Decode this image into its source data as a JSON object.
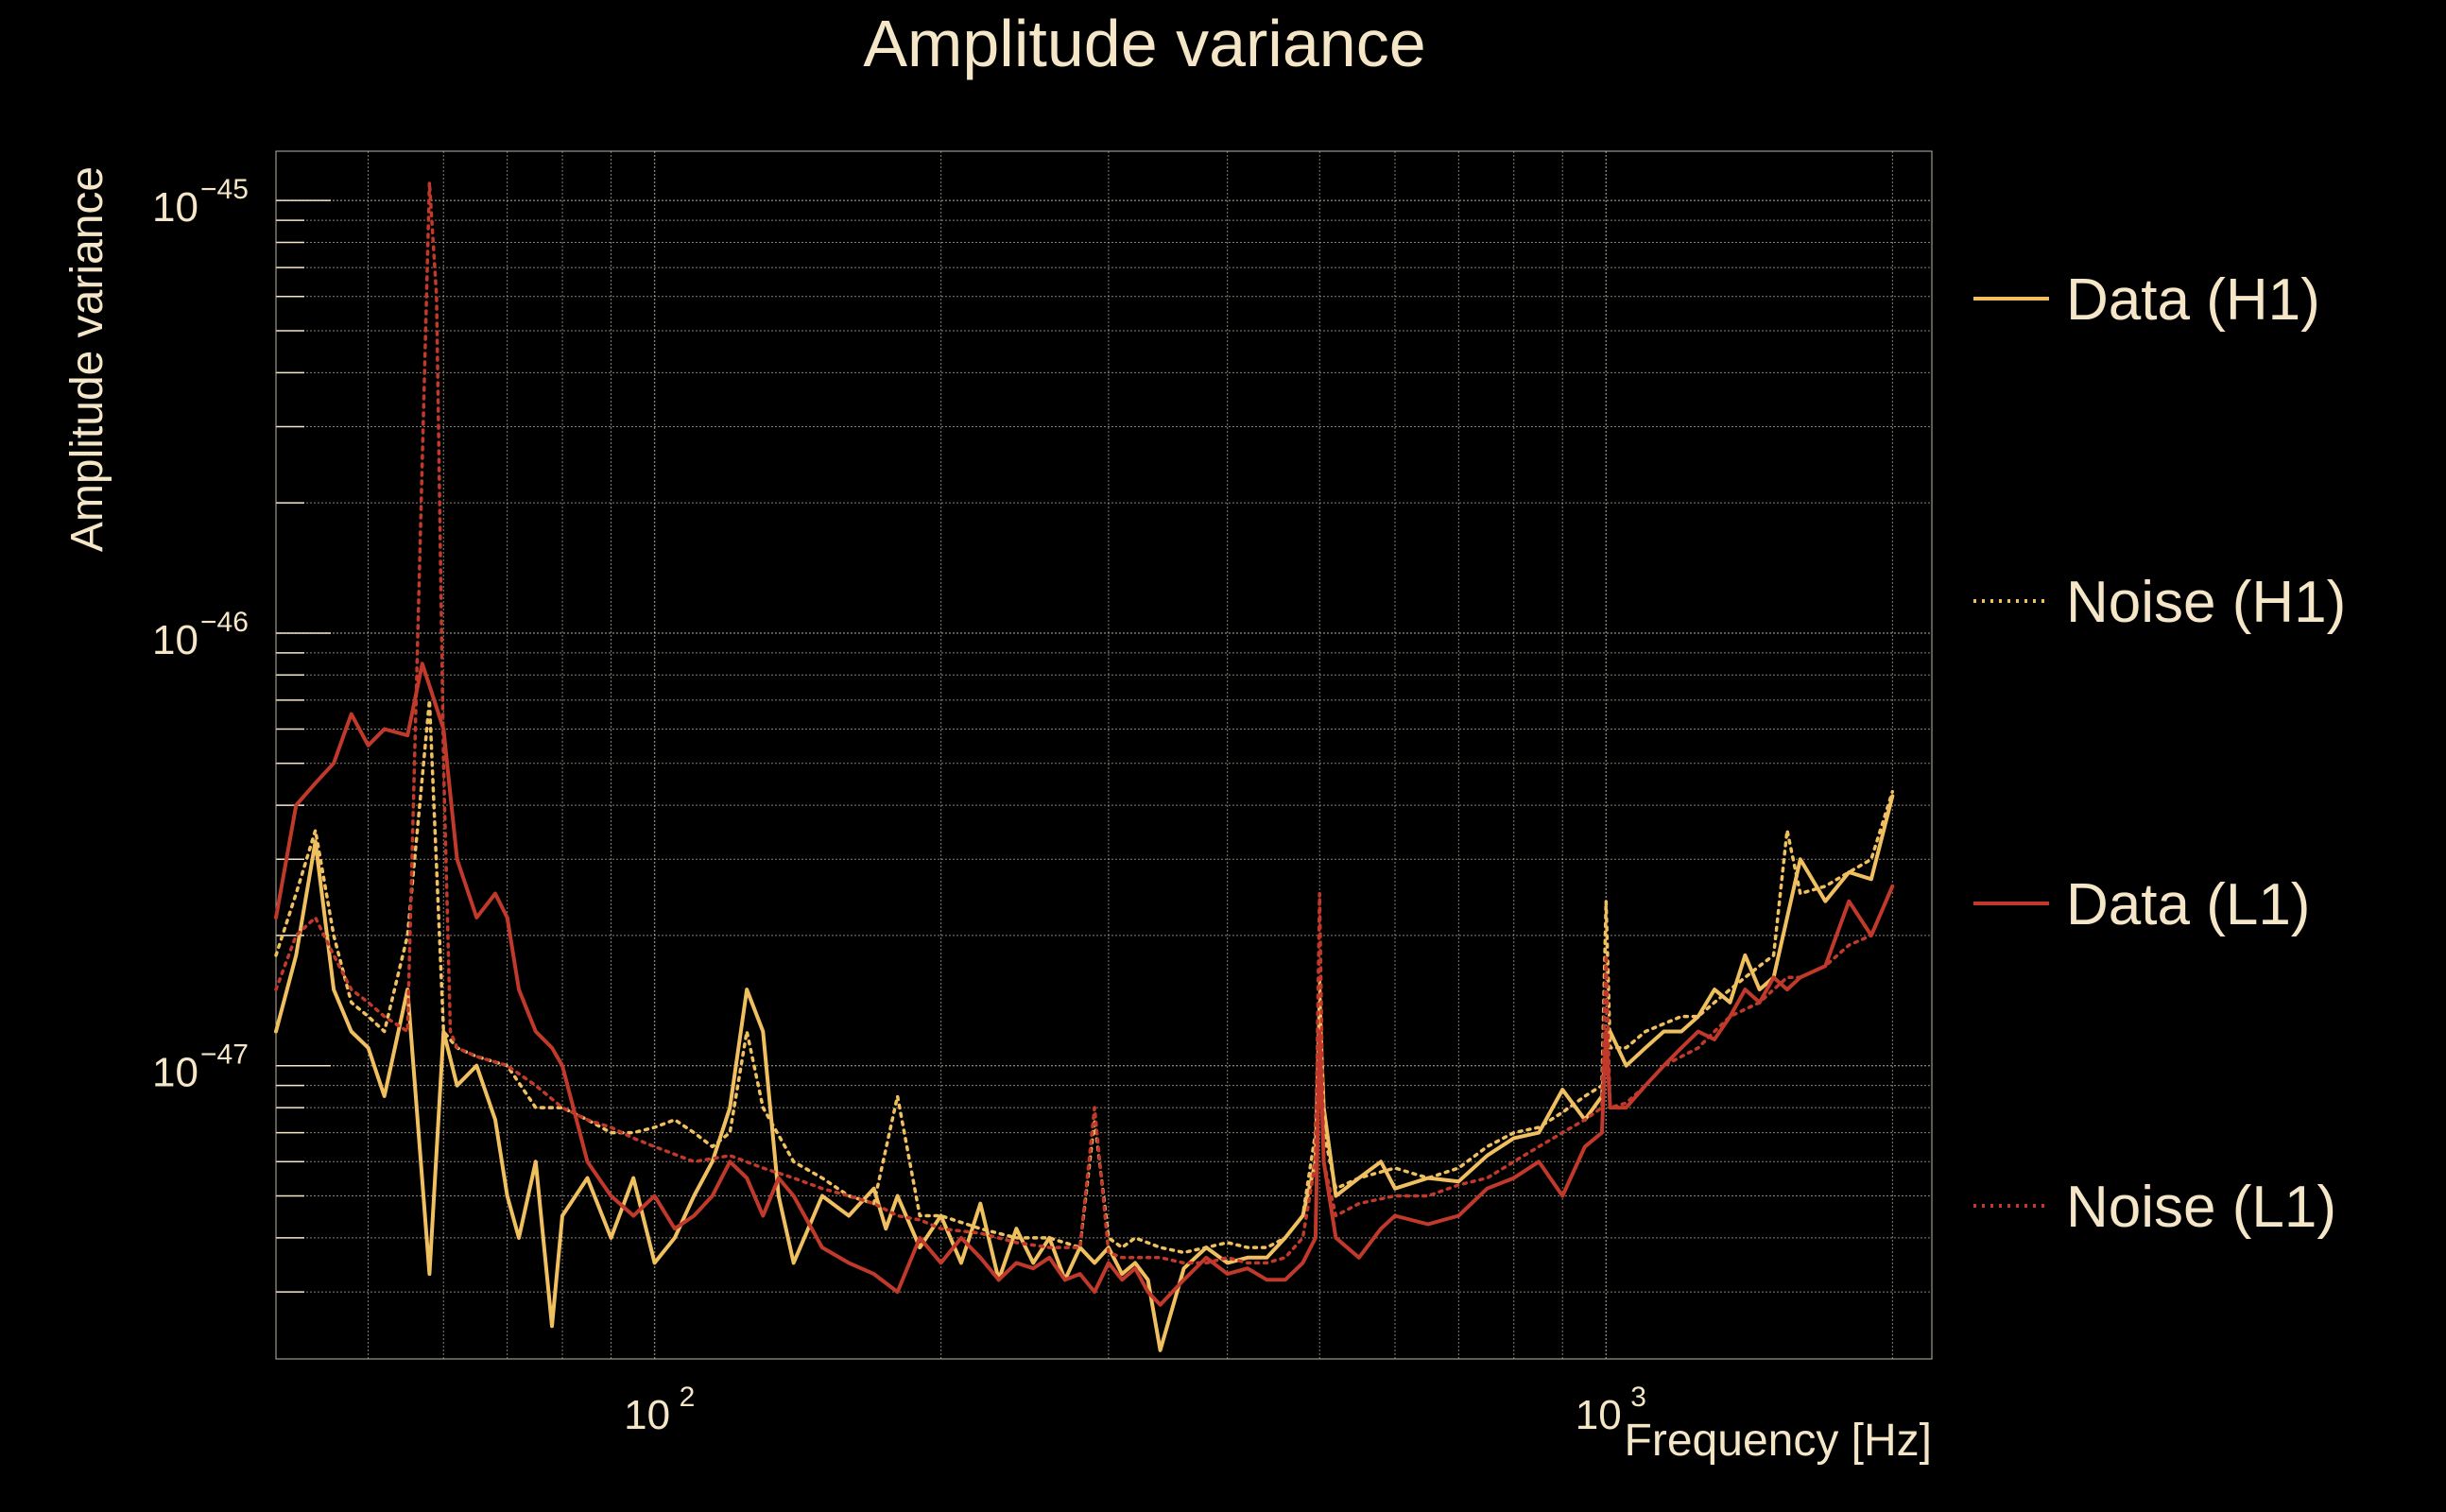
{
  "colors": {
    "background": "#000000",
    "text": "#f5e6c8",
    "grid": "#bdb6a6",
    "data_h1": "#f0c060",
    "noise_h1": "#f0c060",
    "data_l1": "#c0392b",
    "noise_l1": "#c0392b"
  },
  "chart_data": {
    "type": "line",
    "title": "Amplitude variance",
    "xlabel": "Frequency [Hz]",
    "ylabel": "Amplitude variance",
    "xscale": "log",
    "yscale": "log",
    "xlim": [
      40,
      2200
    ],
    "ylim": [
      2.1e-48,
      1.3e-45
    ],
    "grid": true,
    "legend": "right",
    "x_ticks": [
      {
        "value": 100,
        "base": "10",
        "exp": "2"
      },
      {
        "value": 1000,
        "base": "10",
        "exp": "3"
      }
    ],
    "y_ticks": [
      {
        "value": 1e-45,
        "base": "10",
        "exp": "−45"
      },
      {
        "value": 1e-46,
        "base": "10",
        "exp": "−46"
      },
      {
        "value": 1e-47,
        "base": "10",
        "exp": "−47"
      }
    ],
    "series": [
      {
        "name": "Data (H1)",
        "style": "solid",
        "color": "#f0c060",
        "x": [
          40,
          42,
          44,
          46,
          48,
          50,
          52,
          55,
          58,
          60,
          62,
          65,
          68,
          70,
          72,
          75,
          78,
          80,
          85,
          90,
          95,
          100,
          105,
          110,
          115,
          120,
          125,
          130,
          135,
          140,
          150,
          160,
          170,
          175,
          180,
          190,
          200,
          210,
          220,
          230,
          240,
          250,
          260,
          270,
          280,
          290,
          300,
          310,
          320,
          330,
          340,
          360,
          380,
          400,
          420,
          440,
          460,
          480,
          495,
          500,
          505,
          520,
          550,
          580,
          600,
          650,
          700,
          750,
          800,
          850,
          900,
          950,
          990,
          1000,
          1010,
          1050,
          1100,
          1150,
          1200,
          1250,
          1300,
          1350,
          1400,
          1450,
          1500,
          1550,
          1600,
          1700,
          1800,
          1900,
          2000
        ],
        "y": [
          1.2e-47,
          1.8e-47,
          3.3e-47,
          1.5e-47,
          1.2e-47,
          1.1e-47,
          8.5e-48,
          1.5e-47,
          3.3e-48,
          1.2e-47,
          9e-48,
          1e-47,
          7.5e-48,
          5e-48,
          4e-48,
          6e-48,
          2.5e-48,
          4.5e-48,
          5.5e-48,
          4e-48,
          5.5e-48,
          3.5e-48,
          4e-48,
          5e-48,
          6e-48,
          8e-48,
          1.5e-47,
          1.2e-47,
          5e-48,
          3.5e-48,
          5e-48,
          4.5e-48,
          5.2e-48,
          4.2e-48,
          5e-48,
          3.8e-48,
          4.5e-48,
          3.5e-48,
          4.8e-48,
          3.2e-48,
          4.2e-48,
          3.5e-48,
          4e-48,
          3.2e-48,
          3.8e-48,
          3.5e-48,
          3.8e-48,
          3.3e-48,
          3.5e-48,
          3.2e-48,
          2.2e-48,
          3.4e-48,
          3.8e-48,
          3.5e-48,
          3.6e-48,
          3.6e-48,
          4e-48,
          4.5e-48,
          6e-48,
          1.4e-47,
          8e-48,
          5e-48,
          5.5e-48,
          6e-48,
          5.2e-48,
          5.5e-48,
          5.4e-48,
          6.2e-48,
          6.8e-48,
          7e-48,
          8.8e-48,
          7.5e-48,
          8.5e-48,
          1.1e-47,
          1.2e-47,
          1e-47,
          1.1e-47,
          1.2e-47,
          1.2e-47,
          1.3e-47,
          1.5e-47,
          1.4e-47,
          1.8e-47,
          1.5e-47,
          1.6e-47,
          2.2e-47,
          3e-47,
          2.4e-47,
          2.8e-47,
          2.7e-47,
          4.2e-47
        ]
      },
      {
        "name": "Noise (H1)",
        "style": "dotted",
        "color": "#f0c060",
        "x": [
          40,
          42,
          44,
          46,
          48,
          50,
          52,
          55,
          58,
          60,
          62,
          65,
          70,
          75,
          80,
          85,
          90,
          95,
          100,
          105,
          110,
          115,
          120,
          125,
          130,
          140,
          150,
          160,
          170,
          180,
          190,
          200,
          220,
          240,
          260,
          280,
          290,
          300,
          310,
          320,
          340,
          360,
          380,
          400,
          420,
          440,
          460,
          480,
          495,
          500,
          505,
          520,
          550,
          600,
          650,
          700,
          750,
          800,
          850,
          900,
          950,
          990,
          1000,
          1010,
          1050,
          1100,
          1150,
          1200,
          1250,
          1300,
          1350,
          1400,
          1450,
          1500,
          1550,
          1600,
          1700,
          1800,
          1900,
          2000
        ],
        "y": [
          1.8e-47,
          2.5e-47,
          3.5e-47,
          2e-47,
          1.4e-47,
          1.3e-47,
          1.2e-47,
          2e-47,
          7e-47,
          1.2e-47,
          1.1e-47,
          1.05e-47,
          1e-47,
          8e-48,
          8e-48,
          7.5e-48,
          7e-48,
          7e-48,
          7.2e-48,
          7.5e-48,
          7e-48,
          6.5e-48,
          7e-48,
          1.2e-47,
          8e-48,
          6e-48,
          5.5e-48,
          5e-48,
          4.8e-48,
          8.5e-48,
          4.5e-48,
          4.5e-48,
          4.2e-48,
          4e-48,
          4e-48,
          3.8e-48,
          7.5e-48,
          4e-48,
          3.8e-48,
          4e-48,
          3.8e-48,
          3.7e-48,
          3.8e-48,
          3.9e-48,
          3.8e-48,
          3.8e-48,
          4e-48,
          4.5e-48,
          7e-48,
          1.6e-47,
          7e-48,
          5.2e-48,
          5.5e-48,
          5.8e-48,
          5.5e-48,
          5.8e-48,
          6.5e-48,
          7e-48,
          7.2e-48,
          7.8e-48,
          8.5e-48,
          9e-48,
          2.4e-47,
          1.1e-47,
          1.1e-47,
          1.2e-47,
          1.25e-47,
          1.3e-47,
          1.3e-47,
          1.4e-47,
          1.5e-47,
          1.6e-47,
          1.7e-47,
          1.8e-47,
          3.5e-47,
          2.5e-47,
          2.6e-47,
          2.8e-47,
          3e-47,
          4.3e-47
        ]
      },
      {
        "name": "Data (L1)",
        "style": "solid",
        "color": "#c0392b",
        "x": [
          40,
          42,
          44,
          46,
          48,
          50,
          52,
          55,
          57,
          60,
          62,
          65,
          68,
          70,
          72,
          75,
          78,
          80,
          85,
          90,
          95,
          100,
          105,
          110,
          115,
          120,
          125,
          130,
          135,
          140,
          150,
          160,
          170,
          180,
          190,
          200,
          210,
          220,
          230,
          240,
          250,
          260,
          270,
          280,
          290,
          300,
          310,
          320,
          330,
          340,
          360,
          380,
          400,
          420,
          440,
          460,
          480,
          495,
          500,
          505,
          520,
          550,
          580,
          600,
          650,
          700,
          750,
          800,
          850,
          900,
          950,
          990,
          1000,
          1010,
          1050,
          1100,
          1150,
          1200,
          1250,
          1300,
          1350,
          1400,
          1450,
          1500,
          1550,
          1600,
          1700,
          1800,
          1900,
          2000
        ],
        "y": [
          2.2e-47,
          4e-47,
          4.5e-47,
          5e-47,
          6.5e-47,
          5.5e-47,
          6e-47,
          5.8e-47,
          8.5e-47,
          6e-47,
          3e-47,
          2.2e-47,
          2.5e-47,
          2.2e-47,
          1.5e-47,
          1.2e-47,
          1.1e-47,
          1e-47,
          6e-48,
          5e-48,
          4.5e-48,
          5e-48,
          4.2e-48,
          4.5e-48,
          5e-48,
          6e-48,
          5.5e-48,
          4.5e-48,
          5.5e-48,
          5e-48,
          3.8e-48,
          3.5e-48,
          3.3e-48,
          3e-48,
          4e-48,
          3.5e-48,
          4e-48,
          3.6e-48,
          3.2e-48,
          3.5e-48,
          3.4e-48,
          3.6e-48,
          3.2e-48,
          3.3e-48,
          3e-48,
          3.5e-48,
          3.2e-48,
          3.4e-48,
          3e-48,
          2.8e-48,
          3.2e-48,
          3.6e-48,
          3.3e-48,
          3.4e-48,
          3.2e-48,
          3.2e-48,
          3.5e-48,
          4e-48,
          1.2e-47,
          6e-48,
          4e-48,
          3.6e-48,
          4.2e-48,
          4.5e-48,
          4.3e-48,
          4.5e-48,
          5.2e-48,
          5.5e-48,
          6e-48,
          5e-48,
          6.5e-48,
          7e-48,
          1.2e-47,
          8e-48,
          8e-48,
          9e-48,
          1e-47,
          1.1e-47,
          1.2e-47,
          1.15e-47,
          1.3e-47,
          1.5e-47,
          1.4e-47,
          1.6e-47,
          1.5e-47,
          1.6e-47,
          1.7e-47,
          2.4e-47,
          2e-47,
          2.6e-47
        ]
      },
      {
        "name": "Noise (L1)",
        "style": "dotted",
        "color": "#c0392b",
        "x": [
          40,
          42,
          44,
          46,
          48,
          50,
          52,
          55,
          58,
          59,
          60,
          61,
          62,
          65,
          70,
          75,
          80,
          85,
          90,
          95,
          100,
          110,
          120,
          130,
          140,
          150,
          160,
          170,
          180,
          190,
          200,
          220,
          240,
          260,
          280,
          290,
          300,
          310,
          320,
          340,
          360,
          380,
          400,
          420,
          440,
          460,
          480,
          495,
          500,
          505,
          520,
          550,
          600,
          650,
          700,
          750,
          800,
          850,
          900,
          950,
          990,
          1000,
          1010,
          1050,
          1100,
          1150,
          1200,
          1250,
          1300,
          1350,
          1400,
          1450,
          1500,
          1550,
          1600,
          1700,
          1800,
          1900,
          2000
        ],
        "y": [
          1.5e-47,
          2e-47,
          2.2e-47,
          1.8e-47,
          1.5e-47,
          1.4e-47,
          1.3e-47,
          1.2e-47,
          1.1e-45,
          6e-46,
          5e-47,
          1.2e-47,
          1.1e-47,
          1.05e-47,
          1e-47,
          9e-48,
          8e-48,
          7.5e-48,
          7.2e-48,
          6.8e-48,
          6.5e-48,
          6e-48,
          6.2e-48,
          5.8e-48,
          5.5e-48,
          5.2e-48,
          5e-48,
          4.8e-48,
          4.5e-48,
          4.4e-48,
          4.2e-48,
          4.1e-48,
          3.9e-48,
          3.8e-48,
          3.8e-48,
          8e-48,
          3.7e-48,
          3.6e-48,
          3.6e-48,
          3.6e-48,
          3.5e-48,
          3.5e-48,
          3.6e-48,
          3.5e-48,
          3.5e-48,
          3.6e-48,
          4e-48,
          6e-48,
          2.5e-47,
          6e-48,
          4.5e-48,
          4.8e-48,
          5e-48,
          5e-48,
          5.3e-48,
          5.5e-48,
          6e-48,
          6.5e-48,
          7e-48,
          7.5e-48,
          8e-48,
          1.8e-47,
          8e-48,
          8.2e-48,
          9e-48,
          1e-47,
          1.05e-47,
          1.1e-47,
          1.2e-47,
          1.3e-47,
          1.35e-47,
          1.4e-47,
          1.5e-47,
          1.6e-47,
          1.6e-47,
          1.7e-47,
          1.9e-47,
          2e-47,
          2.6e-47
        ]
      }
    ]
  }
}
